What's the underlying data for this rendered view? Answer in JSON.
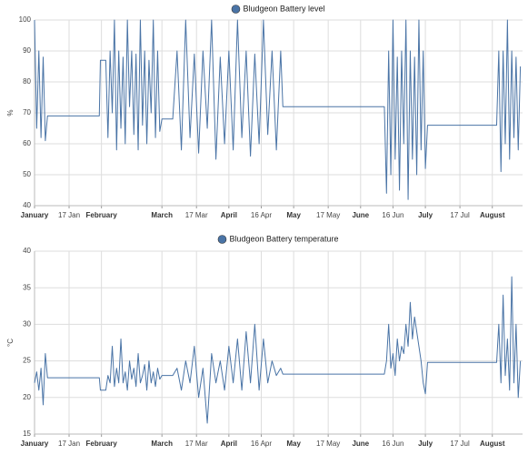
{
  "chart_data": [
    {
      "type": "line",
      "series": [
        {
          "name": "Bludgeon Battery level",
          "color": "#4a74a6",
          "values": [
            100,
            65,
            90,
            62,
            88,
            61,
            69,
            69,
            87,
            87,
            62,
            90,
            70,
            100,
            58,
            90,
            65,
            88,
            60,
            100,
            72,
            90,
            63,
            89,
            58,
            100,
            66,
            90,
            60,
            87,
            70,
            100,
            62,
            90,
            64,
            68,
            68,
            90,
            58,
            100,
            62,
            89,
            57,
            90,
            65,
            100,
            55,
            88,
            60,
            90,
            58,
            100,
            62,
            90,
            56,
            89,
            60,
            100,
            63,
            90,
            58,
            90,
            72,
            72,
            44,
            90,
            50,
            100,
            55,
            88,
            45,
            90,
            60,
            100,
            42,
            90,
            55,
            88,
            50,
            100,
            58,
            90,
            52,
            66,
            66,
            90,
            51,
            90,
            60,
            100,
            55,
            90,
            62,
            88,
            58,
            85
          ]
        }
      ],
      "x": [
        0,
        1,
        2,
        3,
        4,
        5,
        6,
        30,
        30.5,
        33,
        34,
        35,
        36,
        37,
        38,
        39,
        40,
        41,
        42,
        43,
        44,
        45,
        46,
        47,
        48,
        49,
        50,
        51,
        52,
        53,
        54,
        55,
        56,
        57,
        58,
        59,
        64,
        66,
        68,
        70,
        72,
        74,
        76,
        78,
        80,
        82,
        84,
        86,
        88,
        90,
        92,
        94,
        96,
        98,
        100,
        102,
        104,
        106,
        108,
        110,
        112,
        114,
        115,
        162,
        163,
        164,
        165,
        166,
        167,
        168,
        169,
        170,
        171,
        172,
        173,
        174,
        175,
        176,
        177,
        178,
        179,
        180,
        181,
        182,
        214,
        215,
        216,
        217,
        218,
        219,
        220,
        221,
        222,
        223,
        224,
        225
      ],
      "y_label": "%",
      "ylim": [
        40,
        100
      ],
      "yticks": [
        40,
        50,
        60,
        70,
        80,
        90,
        100
      ],
      "xlim": [
        0,
        226
      ],
      "xticks": [
        {
          "value": 0,
          "label": "January"
        },
        {
          "value": 16,
          "label": "17 Jan"
        },
        {
          "value": 31,
          "label": "February"
        },
        {
          "value": 59,
          "label": "March"
        },
        {
          "value": 75,
          "label": "17 Mar"
        },
        {
          "value": 90,
          "label": "April"
        },
        {
          "value": 105,
          "label": "16 Apr"
        },
        {
          "value": 120,
          "label": "May"
        },
        {
          "value": 136,
          "label": "17 May"
        },
        {
          "value": 151,
          "label": "June"
        },
        {
          "value": 166,
          "label": "16 Jun"
        },
        {
          "value": 181,
          "label": "July"
        },
        {
          "value": 197,
          "label": "17 Jul"
        },
        {
          "value": 212,
          "label": "August"
        }
      ],
      "grid": true
    },
    {
      "type": "line",
      "series": [
        {
          "name": "Bludgeon Battery temperature",
          "color": "#4a74a6",
          "values": [
            22,
            23.5,
            21,
            24,
            19,
            26,
            22.7,
            22.7,
            21,
            21,
            23,
            22,
            27,
            21.5,
            24,
            22,
            28,
            22,
            23.5,
            21,
            25,
            22.5,
            24,
            21.5,
            26,
            22,
            23,
            24.5,
            21,
            25,
            22,
            23.5,
            21.5,
            24,
            22.5,
            23,
            23,
            24,
            21,
            25,
            22,
            27,
            20,
            24,
            16.5,
            26,
            22,
            25,
            21,
            27,
            22,
            28,
            21,
            29,
            22,
            30,
            21,
            28,
            22,
            25,
            23,
            24,
            23.2,
            23.2,
            25,
            30,
            24,
            26,
            23,
            28,
            25,
            27,
            26,
            30,
            27,
            33,
            28,
            31,
            29,
            27,
            25,
            22,
            20.5,
            24.8,
            24.8,
            30,
            22,
            34,
            23,
            28,
            21,
            36.5,
            22,
            30,
            20,
            25
          ]
        }
      ],
      "x": [
        0,
        1,
        2,
        3,
        4,
        5,
        6,
        30,
        30.5,
        33,
        34,
        35,
        36,
        37,
        38,
        39,
        40,
        41,
        42,
        43,
        44,
        45,
        46,
        47,
        48,
        49,
        50,
        51,
        52,
        53,
        54,
        55,
        56,
        57,
        58,
        59,
        64,
        66,
        68,
        70,
        72,
        74,
        76,
        78,
        80,
        82,
        84,
        86,
        88,
        90,
        92,
        94,
        96,
        98,
        100,
        102,
        104,
        106,
        108,
        110,
        112,
        114,
        115,
        162,
        163,
        164,
        165,
        166,
        167,
        168,
        169,
        170,
        171,
        172,
        173,
        174,
        175,
        176,
        177,
        178,
        179,
        180,
        181,
        182,
        214,
        215,
        216,
        217,
        218,
        219,
        220,
        221,
        222,
        223,
        224,
        225
      ],
      "y_label": "°C",
      "ylim": [
        15,
        40
      ],
      "yticks": [
        15,
        20,
        25,
        30,
        35,
        40
      ],
      "xlim": [
        0,
        226
      ],
      "xticks": [
        {
          "value": 0,
          "label": "January"
        },
        {
          "value": 16,
          "label": "17 Jan"
        },
        {
          "value": 31,
          "label": "February"
        },
        {
          "value": 59,
          "label": "March"
        },
        {
          "value": 75,
          "label": "17 Mar"
        },
        {
          "value": 90,
          "label": "April"
        },
        {
          "value": 105,
          "label": "16 Apr"
        },
        {
          "value": 120,
          "label": "May"
        },
        {
          "value": 136,
          "label": "17 May"
        },
        {
          "value": 151,
          "label": "June"
        },
        {
          "value": 166,
          "label": "16 Jun"
        },
        {
          "value": 181,
          "label": "July"
        },
        {
          "value": 197,
          "label": "17 Jul"
        },
        {
          "value": 212,
          "label": "August"
        }
      ],
      "grid": true
    }
  ]
}
